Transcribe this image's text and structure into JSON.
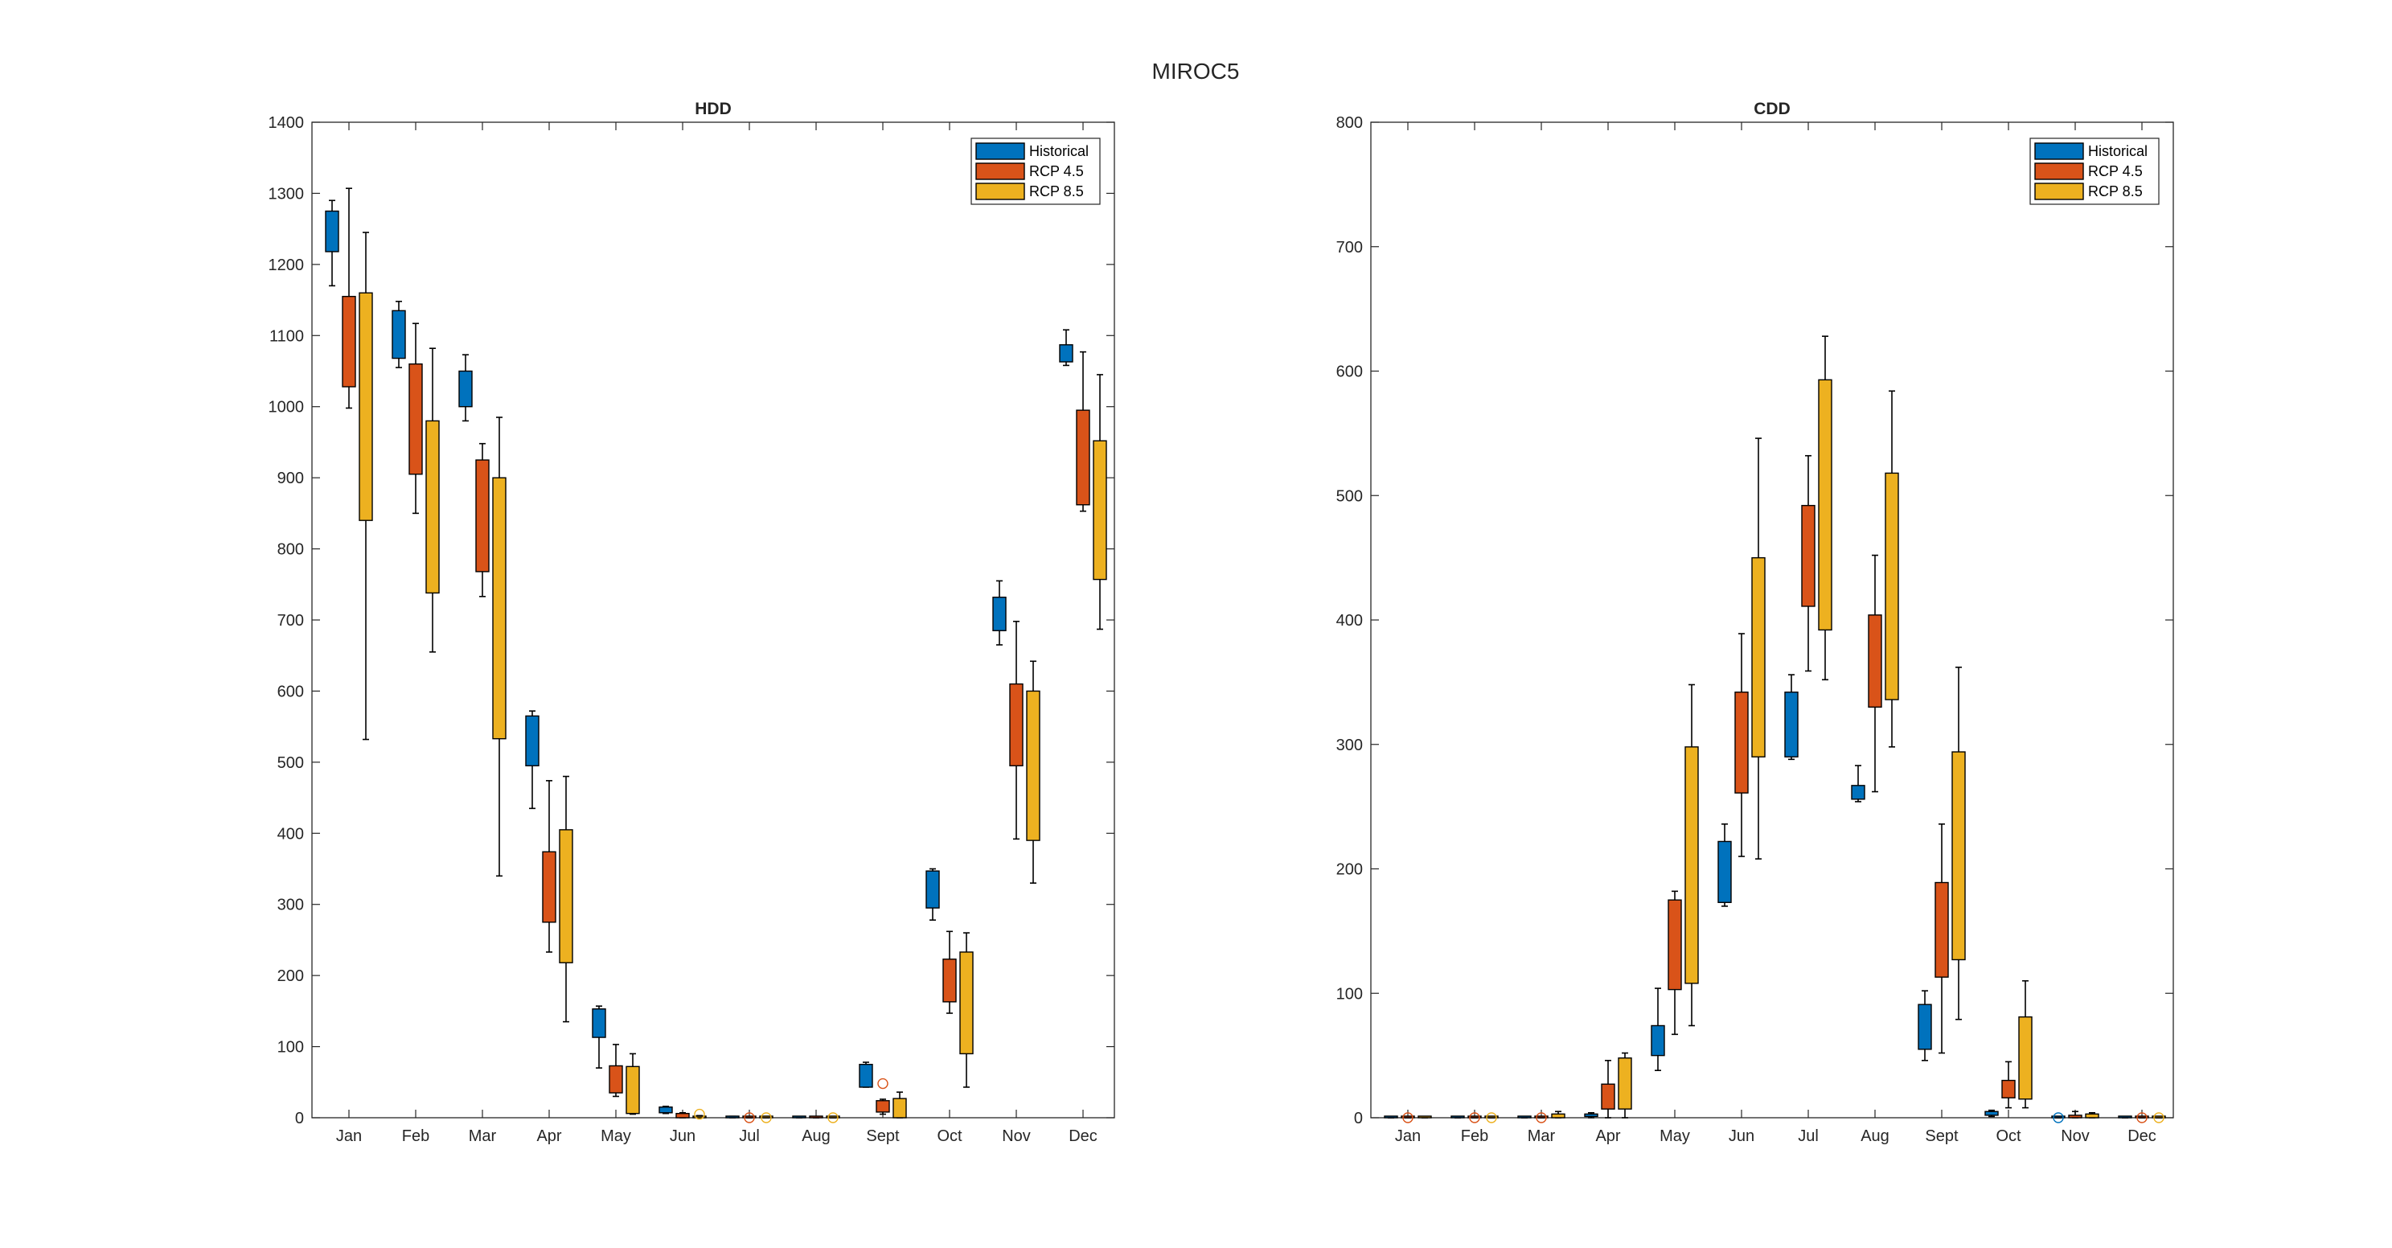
{
  "figure": {
    "title": "MIROC5"
  },
  "legend_labels": [
    "Historical",
    "RCP 4.5",
    "RCP 8.5"
  ],
  "colors": {
    "historical": "#0072BD",
    "rcp45": "#D95319",
    "rcp85": "#EDB120",
    "outline": "#000000",
    "axis": "#262626"
  },
  "chart_data": [
    {
      "type": "box",
      "title": "HDD",
      "xlabel": "",
      "ylabel": "",
      "categories": [
        "Jan",
        "Feb",
        "Mar",
        "Apr",
        "May",
        "Jun",
        "Jul",
        "Aug",
        "Sept",
        "Oct",
        "Nov",
        "Dec"
      ],
      "ylim": [
        0,
        1400
      ],
      "yticks": [
        0,
        100,
        200,
        300,
        400,
        500,
        600,
        700,
        800,
        900,
        1000,
        1100,
        1200,
        1300,
        1400
      ],
      "legend_position": "top-right",
      "grid": false,
      "series": [
        {
          "name": "Historical",
          "boxes": [
            {
              "min": 1170,
              "q1": 1218,
              "q3": 1275,
              "max": 1290
            },
            {
              "min": 1055,
              "q1": 1068,
              "q3": 1135,
              "max": 1148
            },
            {
              "min": 980,
              "q1": 1000,
              "q3": 1050,
              "max": 1073
            },
            {
              "min": 435,
              "q1": 495,
              "q3": 565,
              "max": 572
            },
            {
              "min": 70,
              "q1": 113,
              "q3": 153,
              "max": 157
            },
            {
              "min": 6,
              "q1": 7,
              "q3": 15,
              "max": 16
            },
            {
              "min": 0,
              "q1": 0,
              "q3": 2,
              "max": 2
            },
            {
              "min": 0,
              "q1": 0,
              "q3": 1,
              "max": 1
            },
            {
              "min": 43,
              "q1": 43,
              "q3": 75,
              "max": 78
            },
            {
              "min": 278,
              "q1": 295,
              "q3": 347,
              "max": 350
            },
            {
              "min": 665,
              "q1": 685,
              "q3": 732,
              "max": 755
            },
            {
              "min": 1058,
              "q1": 1063,
              "q3": 1087,
              "max": 1108
            }
          ],
          "outliers": [
            [],
            [],
            [],
            [],
            [],
            [],
            [],
            [],
            [],
            [],
            [],
            []
          ]
        },
        {
          "name": "RCP 4.5",
          "boxes": [
            {
              "min": 998,
              "q1": 1028,
              "q3": 1155,
              "max": 1307
            },
            {
              "min": 850,
              "q1": 905,
              "q3": 1060,
              "max": 1117
            },
            {
              "min": 733,
              "q1": 768,
              "q3": 925,
              "max": 948
            },
            {
              "min": 233,
              "q1": 275,
              "q3": 374,
              "max": 474
            },
            {
              "min": 30,
              "q1": 35,
              "q3": 73,
              "max": 103
            },
            {
              "min": 0,
              "q1": 0,
              "q3": 6,
              "max": 7
            },
            {
              "min": 0,
              "q1": 0,
              "q3": 0,
              "max": 0
            },
            {
              "min": 0,
              "q1": 0,
              "q3": 0,
              "max": 0
            },
            {
              "min": 5,
              "q1": 8,
              "q3": 24,
              "max": 26
            },
            {
              "min": 147,
              "q1": 163,
              "q3": 223,
              "max": 262
            },
            {
              "min": 392,
              "q1": 495,
              "q3": 610,
              "max": 698
            },
            {
              "min": 853,
              "q1": 862,
              "q3": 995,
              "max": 1077
            }
          ],
          "outliers": [
            [],
            [],
            [],
            [],
            [],
            [],
            [
              0
            ],
            [],
            [
              48
            ],
            [],
            [],
            []
          ]
        },
        {
          "name": "RCP 8.5",
          "boxes": [
            {
              "min": 532,
              "q1": 840,
              "q3": 1160,
              "max": 1245
            },
            {
              "min": 655,
              "q1": 738,
              "q3": 980,
              "max": 1082
            },
            {
              "min": 340,
              "q1": 533,
              "q3": 900,
              "max": 985
            },
            {
              "min": 135,
              "q1": 218,
              "q3": 405,
              "max": 480
            },
            {
              "min": 5,
              "q1": 6,
              "q3": 72,
              "max": 90
            },
            {
              "min": 0,
              "q1": 0,
              "q3": 2,
              "max": 3
            },
            {
              "min": 0,
              "q1": 0,
              "q3": 0,
              "max": 0
            },
            {
              "min": 0,
              "q1": 0,
              "q3": 0,
              "max": 0
            },
            {
              "min": 0,
              "q1": 0,
              "q3": 27,
              "max": 36
            },
            {
              "min": 43,
              "q1": 90,
              "q3": 233,
              "max": 260
            },
            {
              "min": 330,
              "q1": 390,
              "q3": 600,
              "max": 642
            },
            {
              "min": 687,
              "q1": 757,
              "q3": 952,
              "max": 1045
            }
          ],
          "outliers": [
            [],
            [],
            [],
            [],
            [],
            [
              5
            ],
            [
              0
            ],
            [
              0
            ],
            [],
            [],
            [],
            []
          ]
        }
      ]
    },
    {
      "type": "box",
      "title": "CDD",
      "xlabel": "",
      "ylabel": "",
      "categories": [
        "Jan",
        "Feb",
        "Mar",
        "Apr",
        "May",
        "Jun",
        "Jul",
        "Aug",
        "Sept",
        "Oct",
        "Nov",
        "Dec"
      ],
      "ylim": [
        0,
        800
      ],
      "yticks": [
        0,
        100,
        200,
        300,
        400,
        500,
        600,
        700,
        800
      ],
      "legend_position": "top-right",
      "grid": false,
      "series": [
        {
          "name": "Historical",
          "boxes": [
            {
              "min": 0,
              "q1": 0,
              "q3": 0,
              "max": 0
            },
            {
              "min": 0,
              "q1": 0,
              "q3": 0,
              "max": 0
            },
            {
              "min": 0,
              "q1": 0,
              "q3": 0,
              "max": 0
            },
            {
              "min": 0,
              "q1": 1,
              "q3": 3,
              "max": 4
            },
            {
              "min": 38,
              "q1": 50,
              "q3": 74,
              "max": 104
            },
            {
              "min": 170,
              "q1": 173,
              "q3": 222,
              "max": 236
            },
            {
              "min": 288,
              "q1": 290,
              "q3": 342,
              "max": 356
            },
            {
              "min": 254,
              "q1": 256,
              "q3": 267,
              "max": 283
            },
            {
              "min": 46,
              "q1": 55,
              "q3": 91,
              "max": 102
            },
            {
              "min": 1,
              "q1": 2,
              "q3": 5,
              "max": 6
            },
            {
              "min": 0,
              "q1": 0,
              "q3": 0,
              "max": 0
            },
            {
              "min": 0,
              "q1": 0,
              "q3": 0,
              "max": 0
            }
          ],
          "outliers": [
            [],
            [],
            [],
            [],
            [],
            [],
            [],
            [],
            [],
            [],
            [
              0
            ],
            []
          ]
        },
        {
          "name": "RCP 4.5",
          "boxes": [
            {
              "min": 0,
              "q1": 0,
              "q3": 0,
              "max": 0
            },
            {
              "min": 0,
              "q1": 0,
              "q3": 0,
              "max": 0
            },
            {
              "min": 0,
              "q1": 0,
              "q3": 0,
              "max": 0
            },
            {
              "min": 0,
              "q1": 7,
              "q3": 27,
              "max": 46
            },
            {
              "min": 67,
              "q1": 103,
              "q3": 175,
              "max": 182
            },
            {
              "min": 210,
              "q1": 261,
              "q3": 342,
              "max": 389
            },
            {
              "min": 359,
              "q1": 411,
              "q3": 492,
              "max": 532
            },
            {
              "min": 262,
              "q1": 330,
              "q3": 404,
              "max": 452
            },
            {
              "min": 52,
              "q1": 113,
              "q3": 189,
              "max": 236
            },
            {
              "min": 8,
              "q1": 16,
              "q3": 30,
              "max": 45
            },
            {
              "min": 0,
              "q1": 0,
              "q3": 2,
              "max": 5
            },
            {
              "min": 0,
              "q1": 0,
              "q3": 0,
              "max": 0
            }
          ],
          "outliers": [
            [
              0
            ],
            [
              0
            ],
            [
              0
            ],
            [],
            [],
            [],
            [],
            [],
            [],
            [],
            [],
            [
              0
            ]
          ]
        },
        {
          "name": "RCP 8.5",
          "boxes": [
            {
              "min": 0,
              "q1": 0,
              "q3": 0,
              "max": 0
            },
            {
              "min": 0,
              "q1": 0,
              "q3": 0,
              "max": 0
            },
            {
              "min": 0,
              "q1": 0,
              "q3": 3,
              "max": 5
            },
            {
              "min": 0,
              "q1": 7,
              "q3": 48,
              "max": 52
            },
            {
              "min": 74,
              "q1": 108,
              "q3": 298,
              "max": 348
            },
            {
              "min": 208,
              "q1": 290,
              "q3": 450,
              "max": 546
            },
            {
              "min": 352,
              "q1": 392,
              "q3": 593,
              "max": 628
            },
            {
              "min": 298,
              "q1": 336,
              "q3": 518,
              "max": 584
            },
            {
              "min": 79,
              "q1": 127,
              "q3": 294,
              "max": 362
            },
            {
              "min": 8,
              "q1": 15,
              "q3": 81,
              "max": 110
            },
            {
              "min": 0,
              "q1": 0,
              "q3": 3,
              "max": 4
            },
            {
              "min": 0,
              "q1": 0,
              "q3": 0,
              "max": 0
            }
          ],
          "outliers": [
            [],
            [
              0
            ],
            [],
            [],
            [],
            [],
            [],
            [],
            [],
            [],
            [],
            [
              0
            ]
          ]
        }
      ]
    }
  ]
}
